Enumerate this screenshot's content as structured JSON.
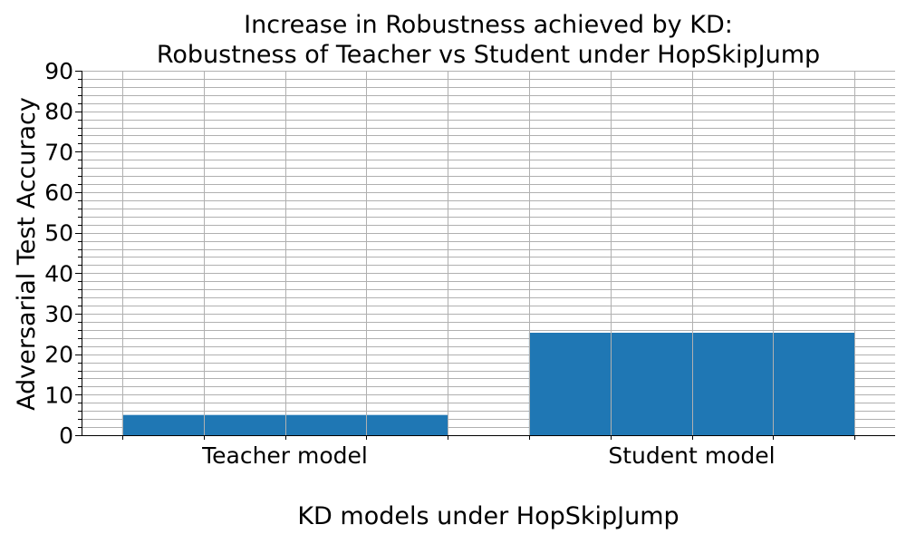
{
  "chart_data": {
    "type": "bar",
    "title": [
      "Increase in Robustness achieved by KD:",
      "Robustness of Teacher vs Student under HopSkipJump"
    ],
    "xlabel": "KD models under HopSkipJump",
    "ylabel": "Adversarial Test Accuracy",
    "categories": [
      "Teacher model",
      "Student model"
    ],
    "values": [
      5,
      25.3
    ],
    "ylim": [
      0,
      90
    ],
    "yticks": [
      0,
      10,
      20,
      30,
      40,
      50,
      60,
      70,
      80,
      90
    ],
    "y_minor_step": 2,
    "grid": true,
    "bar_color": "#1f77b4"
  }
}
